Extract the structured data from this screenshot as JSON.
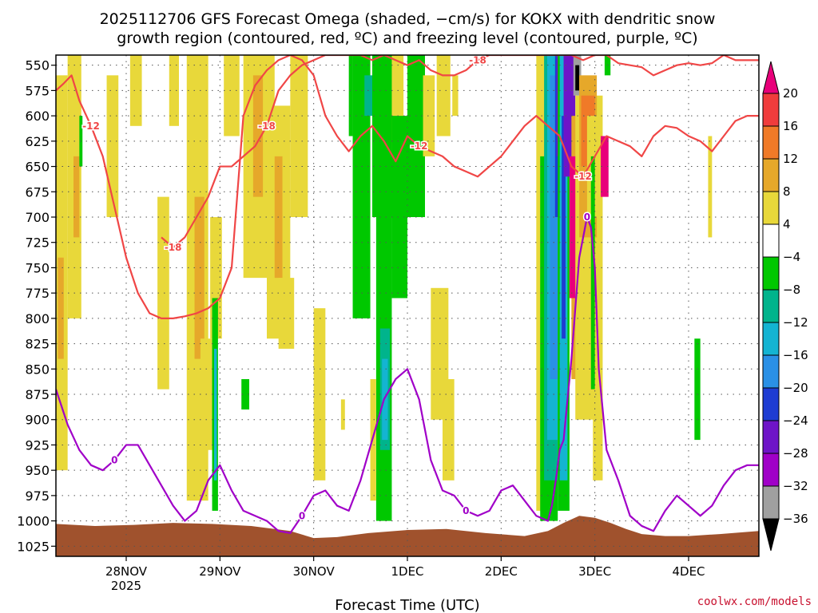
{
  "chart_data": {
    "type": "heatmap",
    "title_line1": "2025112706 GFS Forecast Omega (shaded, −cm/s) for KOKX with dendritic snow",
    "title_line2": "growth region (contoured, red, ºC) and freezing level (contoured, purple, ºC)",
    "xlabel": "Forecast Time (UTC)",
    "credit": "coolwx.com/models",
    "y_axis": {
      "unit": "hPa",
      "range": [
        540,
        1035
      ],
      "ticks": [
        550,
        575,
        600,
        625,
        650,
        675,
        700,
        725,
        750,
        775,
        800,
        825,
        850,
        875,
        900,
        925,
        950,
        975,
        1000,
        1025
      ],
      "inverted": true
    },
    "x_axis": {
      "range_hours_from_init": [
        0,
        180
      ],
      "ticks": [
        {
          "label": "28NOV",
          "sub": "2025",
          "hour": 18
        },
        {
          "label": "29NOV",
          "sub": "",
          "hour": 42
        },
        {
          "label": "30NOV",
          "sub": "",
          "hour": 66
        },
        {
          "label": "1DEC",
          "sub": "",
          "hour": 90
        },
        {
          "label": "2DEC",
          "sub": "",
          "hour": 114
        },
        {
          "label": "3DEC",
          "sub": "",
          "hour": 138
        },
        {
          "label": "4DEC",
          "sub": "",
          "hour": 162
        }
      ]
    },
    "grid": true,
    "colorbar": {
      "labels": [
        "20",
        "16",
        "12",
        "8",
        "4",
        "−4",
        "−8",
        "−12",
        "−16",
        "−20",
        "−24",
        "−28",
        "−32",
        "−36"
      ],
      "colors": [
        "#e8007a",
        "#f03c3c",
        "#f07a28",
        "#e6a82a",
        "#e8d83a",
        "#ffffff",
        "#00c800",
        "#00b48c",
        "#14b4d2",
        "#2a90e6",
        "#1e3cd2",
        "#6e14c8",
        "#a000c8",
        "#a0a0a0",
        "#000000"
      ]
    },
    "omega_patches": [
      {
        "x": [
          0.0,
          3.0
        ],
        "p": [
          560,
          950
        ],
        "color": "#e8d83a"
      },
      {
        "x": [
          0.5,
          2.0
        ],
        "p": [
          740,
          840
        ],
        "color": "#e6a82a"
      },
      {
        "x": [
          3.0,
          6.5
        ],
        "p": [
          540,
          800
        ],
        "color": "#e8d83a"
      },
      {
        "x": [
          4.5,
          6.0
        ],
        "p": [
          640,
          720
        ],
        "color": "#e6a82a"
      },
      {
        "x": [
          6.0,
          6.8
        ],
        "p": [
          600,
          650
        ],
        "color": "#00c800"
      },
      {
        "x": [
          13.0,
          16.0
        ],
        "p": [
          560,
          700
        ],
        "color": "#e8d83a"
      },
      {
        "x": [
          19.0,
          22.0
        ],
        "p": [
          540,
          610
        ],
        "color": "#e8d83a"
      },
      {
        "x": [
          26.0,
          29.0
        ],
        "p": [
          680,
          870
        ],
        "color": "#e8d83a"
      },
      {
        "x": [
          29.0,
          31.5
        ],
        "p": [
          540,
          610
        ],
        "color": "#e8d83a"
      },
      {
        "x": [
          33.5,
          39.0
        ],
        "p": [
          540,
          980
        ],
        "color": "#e8d83a"
      },
      {
        "x": [
          35.5,
          38.0
        ],
        "p": [
          680,
          840
        ],
        "color": "#e6a82a"
      },
      {
        "x": [
          39.5,
          42.5
        ],
        "p": [
          700,
          820
        ],
        "color": "#e8d83a"
      },
      {
        "x": [
          37.0,
          41.0
        ],
        "p": [
          820,
          930
        ],
        "color": "#e8d83a"
      },
      {
        "x": [
          40.0,
          41.5
        ],
        "p": [
          780,
          990
        ],
        "color": "#00c800"
      },
      {
        "x": [
          40.5,
          41.2
        ],
        "p": [
          830,
          960
        ],
        "color": "#14b4d2"
      },
      {
        "x": [
          43.0,
          47.0
        ],
        "p": [
          540,
          620
        ],
        "color": "#e8d83a"
      },
      {
        "x": [
          48.0,
          56.0
        ],
        "p": [
          540,
          760
        ],
        "color": "#e8d83a"
      },
      {
        "x": [
          50.5,
          53.0
        ],
        "p": [
          560,
          680
        ],
        "color": "#e6a82a"
      },
      {
        "x": [
          54.0,
          60.0
        ],
        "p": [
          590,
          820
        ],
        "color": "#e8d83a"
      },
      {
        "x": [
          56.0,
          58.0
        ],
        "p": [
          640,
          760
        ],
        "color": "#e6a82a"
      },
      {
        "x": [
          47.5,
          49.5
        ],
        "p": [
          860,
          890
        ],
        "color": "#00c800"
      },
      {
        "x": [
          57.0,
          61.0
        ],
        "p": [
          760,
          830
        ],
        "color": "#e8d83a"
      },
      {
        "x": [
          60.0,
          64.5
        ],
        "p": [
          540,
          700
        ],
        "color": "#e8d83a"
      },
      {
        "x": [
          66.0,
          69.0
        ],
        "p": [
          790,
          960
        ],
        "color": "#e8d83a"
      },
      {
        "x": [
          73.0,
          74.0
        ],
        "p": [
          880,
          910
        ],
        "color": "#e8d83a"
      },
      {
        "x": [
          75.0,
          76.0
        ],
        "p": [
          540,
          620
        ],
        "color": "#00c800"
      },
      {
        "x": [
          76.0,
          80.5
        ],
        "p": [
          540,
          800
        ],
        "color": "#00c800"
      },
      {
        "x": [
          79.0,
          81.0
        ],
        "p": [
          560,
          600
        ],
        "color": "#00b48c"
      },
      {
        "x": [
          82.0,
          86.0
        ],
        "p": [
          680,
          1000
        ],
        "color": "#00c800"
      },
      {
        "x": [
          83.0,
          85.5
        ],
        "p": [
          810,
          930
        ],
        "color": "#00b48c"
      },
      {
        "x": [
          83.5,
          85.0
        ],
        "p": [
          840,
          920
        ],
        "color": "#14b4d2"
      },
      {
        "x": [
          81.0,
          87.0
        ],
        "p": [
          540,
          700
        ],
        "color": "#00c800"
      },
      {
        "x": [
          80.5,
          82.0
        ],
        "p": [
          860,
          980
        ],
        "color": "#e8d83a"
      },
      {
        "x": [
          86.0,
          89.0
        ],
        "p": [
          540,
          640
        ],
        "color": "#e8d83a"
      },
      {
        "x": [
          86.0,
          90.0
        ],
        "p": [
          600,
          780
        ],
        "color": "#00c800"
      },
      {
        "x": [
          90.0,
          94.5
        ],
        "p": [
          540,
          700
        ],
        "color": "#00c800"
      },
      {
        "x": [
          94.0,
          97.0
        ],
        "p": [
          560,
          640
        ],
        "color": "#e8d83a"
      },
      {
        "x": [
          97.5,
          101.0
        ],
        "p": [
          540,
          620
        ],
        "color": "#e8d83a"
      },
      {
        "x": [
          96.0,
          100.5
        ],
        "p": [
          770,
          900
        ],
        "color": "#e8d83a"
      },
      {
        "x": [
          99.0,
          102.0
        ],
        "p": [
          860,
          960
        ],
        "color": "#e8d83a"
      },
      {
        "x": [
          101.5,
          103.0
        ],
        "p": [
          560,
          600
        ],
        "color": "#e8d83a"
      },
      {
        "x": [
          123.0,
          126.0
        ],
        "p": [
          540,
          990
        ],
        "color": "#e8d83a"
      },
      {
        "x": [
          124.0,
          128.5
        ],
        "p": [
          640,
          1000
        ],
        "color": "#00c800"
      },
      {
        "x": [
          125.0,
          128.5
        ],
        "p": [
          540,
          960
        ],
        "color": "#00b48c"
      },
      {
        "x": [
          125.8,
          128.5
        ],
        "p": [
          540,
          920
        ],
        "color": "#14b4d2"
      },
      {
        "x": [
          126.5,
          128.5
        ],
        "p": [
          560,
          860
        ],
        "color": "#2a90e6"
      },
      {
        "x": [
          127.8,
          129.0
        ],
        "p": [
          540,
          700
        ],
        "color": "#1e3cd2"
      },
      {
        "x": [
          128.2,
          129.0
        ],
        "p": [
          540,
          640
        ],
        "color": "#6e14c8"
      },
      {
        "x": [
          128.5,
          131.5
        ],
        "p": [
          540,
          990
        ],
        "color": "#00c800"
      },
      {
        "x": [
          129.0,
          131.0
        ],
        "p": [
          540,
          960
        ],
        "color": "#14b4d2"
      },
      {
        "x": [
          129.5,
          130.5
        ],
        "p": [
          600,
          820
        ],
        "color": "#1e3cd2"
      },
      {
        "x": [
          130.0,
          133.0
        ],
        "p": [
          540,
          660
        ],
        "color": "#6e14c8"
      },
      {
        "x": [
          132.0,
          134.0
        ],
        "p": [
          600,
          860
        ],
        "color": "#e6a82a"
      },
      {
        "x": [
          131.5,
          134.0
        ],
        "p": [
          640,
          780
        ],
        "color": "#e8007a"
      },
      {
        "x": [
          132.5,
          134.5
        ],
        "p": [
          540,
          580
        ],
        "color": "#a0a0a0"
      },
      {
        "x": [
          133.0,
          134.0
        ],
        "p": [
          550,
          575
        ],
        "color": "#000000"
      },
      {
        "x": [
          133.0,
          140.0
        ],
        "p": [
          580,
          900
        ],
        "color": "#e8d83a"
      },
      {
        "x": [
          134.0,
          138.5
        ],
        "p": [
          560,
          720
        ],
        "color": "#e6a82a"
      },
      {
        "x": [
          134.5,
          138.0
        ],
        "p": [
          580,
          650
        ],
        "color": "#f07a28"
      },
      {
        "x": [
          136.0,
          139.5
        ],
        "p": [
          600,
          700
        ],
        "color": "#e8d83a"
      },
      {
        "x": [
          139.5,
          141.5
        ],
        "p": [
          620,
          680
        ],
        "color": "#e8007a"
      },
      {
        "x": [
          137.0,
          138.0
        ],
        "p": [
          640,
          870
        ],
        "color": "#00c800"
      },
      {
        "x": [
          137.5,
          140.0
        ],
        "p": [
          870,
          960
        ],
        "color": "#e8d83a"
      },
      {
        "x": [
          140.5,
          142.0
        ],
        "p": [
          540,
          560
        ],
        "color": "#00c800"
      },
      {
        "x": [
          163.5,
          165.0
        ],
        "p": [
          820,
          920
        ],
        "color": "#00c800"
      },
      {
        "x": [
          167.0,
          168.0
        ],
        "p": [
          620,
          720
        ],
        "color": "#e8d83a"
      }
    ],
    "dgz_series": [
      {
        "name": "-12",
        "color": "#f04646",
        "x": [
          0,
          2,
          4,
          6,
          9,
          12,
          15,
          18,
          21,
          24,
          27,
          30,
          33,
          36,
          39,
          42,
          45,
          48,
          51,
          54,
          57,
          60,
          63,
          66,
          69,
          72,
          75,
          78,
          81,
          84,
          87,
          90,
          93,
          96,
          99,
          102,
          105,
          108,
          111,
          114,
          117,
          120,
          123,
          126,
          129,
          132,
          135,
          138,
          141,
          144,
          147,
          150,
          153,
          156,
          159,
          162,
          165,
          168,
          171,
          174,
          177,
          180
        ],
        "p": [
          575,
          568,
          560,
          585,
          610,
          640,
          690,
          740,
          775,
          795,
          800,
          800,
          798,
          795,
          790,
          780,
          750,
          600,
          570,
          555,
          545,
          540,
          545,
          560,
          600,
          620,
          635,
          620,
          610,
          625,
          645,
          620,
          630,
          635,
          640,
          650,
          655,
          660,
          650,
          640,
          625,
          610,
          600,
          610,
          620,
          650,
          660,
          640,
          620,
          625,
          630,
          640,
          620,
          610,
          612,
          620,
          625,
          635,
          620,
          605,
          600,
          600
        ]
      },
      {
        "name": "-18",
        "color": "#f04646",
        "x": [
          27,
          30,
          33,
          36,
          39,
          42,
          45,
          48,
          51,
          54,
          57,
          60,
          63,
          66,
          69,
          72,
          75,
          78,
          81,
          84,
          87,
          90,
          93,
          96,
          99,
          102,
          105,
          108,
          111,
          114,
          117,
          120,
          123,
          126,
          129,
          132,
          135,
          138,
          141,
          144,
          147,
          150,
          153,
          156,
          159,
          162,
          165,
          168,
          171,
          174,
          177,
          180
        ],
        "p": [
          720,
          730,
          720,
          700,
          680,
          650,
          650,
          640,
          630,
          610,
          575,
          560,
          550,
          545,
          540,
          540,
          540,
          540,
          545,
          540,
          545,
          550,
          545,
          555,
          560,
          560,
          555,
          545,
          540,
          540,
          540,
          540,
          540,
          540,
          540,
          540,
          545,
          540,
          540,
          548,
          550,
          552,
          560,
          555,
          550,
          548,
          550,
          548,
          540,
          545,
          545,
          545
        ]
      }
    ],
    "freezing_series": [
      {
        "name": "0",
        "color": "#a000c8",
        "x": [
          0,
          3,
          6,
          9,
          12,
          15,
          18,
          21,
          24,
          27,
          30,
          33,
          36,
          39,
          42,
          45,
          48,
          51,
          54,
          57,
          60,
          63,
          66,
          69,
          72,
          75,
          78,
          81,
          84,
          87,
          90,
          93,
          96,
          99,
          102,
          105,
          108,
          111,
          114,
          117,
          120,
          123,
          126,
          127,
          128,
          129,
          130,
          131,
          132,
          133,
          134,
          135,
          136,
          137,
          138,
          139,
          141,
          144,
          147,
          150,
          153,
          156,
          159,
          162,
          165,
          168,
          171,
          174,
          177,
          180
        ],
        "p": [
          870,
          905,
          930,
          945,
          950,
          940,
          925,
          925,
          945,
          965,
          985,
          1000,
          990,
          960,
          945,
          970,
          990,
          995,
          1000,
          1010,
          1012,
          995,
          975,
          970,
          985,
          990,
          960,
          920,
          880,
          860,
          850,
          880,
          940,
          970,
          975,
          990,
          995,
          990,
          970,
          965,
          980,
          995,
          1000,
          985,
          960,
          930,
          920,
          880,
          840,
          790,
          740,
          720,
          700,
          710,
          750,
          850,
          930,
          960,
          995,
          1005,
          1010,
          990,
          975,
          985,
          995,
          985,
          965,
          950,
          945,
          945
        ]
      }
    ]
  }
}
